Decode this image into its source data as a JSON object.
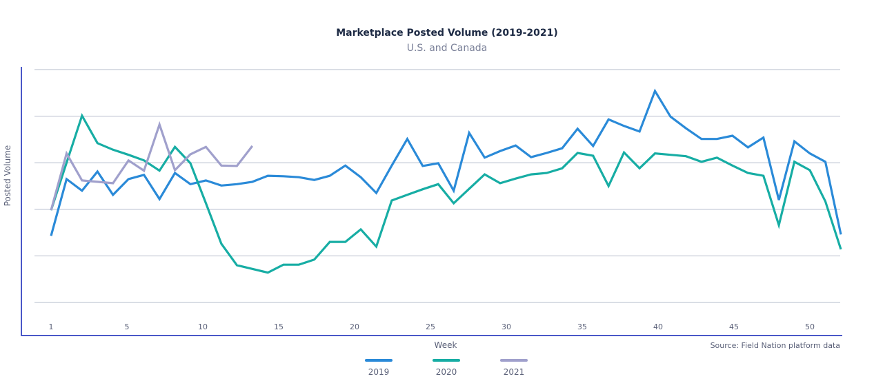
{
  "chart_data": {
    "type": "line",
    "title": "Marketplace Posted Volume (2019-2021)",
    "subtitle": "U.S. and Canada",
    "xlabel": "Week",
    "ylabel": "Posted  Volume",
    "source": "Source: Field Nation platform data",
    "x_ticks": [
      "1",
      "5",
      "10",
      "15",
      "20",
      "25",
      "30",
      "35",
      "40",
      "45",
      "50"
    ],
    "xlim": [
      1,
      52
    ],
    "ylim": [
      -0.7,
      5
    ],
    "y_ticks_labeled": false,
    "grid": true,
    "legend_position": "bottom",
    "series": [
      {
        "name": "2019",
        "color": "#2a8ad8",
        "values": [
          1.43,
          2.65,
          2.4,
          2.81,
          2.31,
          2.65,
          2.74,
          2.22,
          2.78,
          2.54,
          2.62,
          2.51,
          2.54,
          2.59,
          2.72,
          2.71,
          2.69,
          2.63,
          2.72,
          2.94,
          2.69,
          2.35,
          2.94,
          3.51,
          2.93,
          2.99,
          2.4,
          3.64,
          3.11,
          3.25,
          3.37,
          3.12,
          3.21,
          3.31,
          3.73,
          3.36,
          3.93,
          3.79,
          3.67,
          4.54,
          3.99,
          3.74,
          3.51,
          3.51,
          3.58,
          3.33,
          3.54,
          2.2,
          3.46,
          3.2,
          3.02,
          1.46
        ]
      },
      {
        "name": "2020",
        "color": "#17ada4",
        "values": [
          1.98,
          3.0,
          4.01,
          3.42,
          3.28,
          3.17,
          3.05,
          2.83,
          3.34,
          2.99,
          2.13,
          1.26,
          0.8,
          0.72,
          0.64,
          0.81,
          0.81,
          0.92,
          1.3,
          1.3,
          1.57,
          1.2,
          2.19,
          2.31,
          2.43,
          2.54,
          2.13,
          2.44,
          2.75,
          2.56,
          2.66,
          2.75,
          2.78,
          2.88,
          3.21,
          3.15,
          2.5,
          3.22,
          2.88,
          3.2,
          3.17,
          3.14,
          3.02,
          3.11,
          2.94,
          2.78,
          2.72,
          1.66,
          3.02,
          2.84,
          2.17,
          1.14
        ]
      },
      {
        "name": "2021",
        "color": "#a0a0cc",
        "values": [
          1.98,
          3.2,
          2.62,
          2.59,
          2.56,
          3.05,
          2.83,
          3.82,
          2.84,
          3.18,
          3.34,
          2.94,
          2.93,
          3.36
        ]
      }
    ],
    "axis_color": "#4a58c8",
    "grid_color": "#b4bccb"
  }
}
